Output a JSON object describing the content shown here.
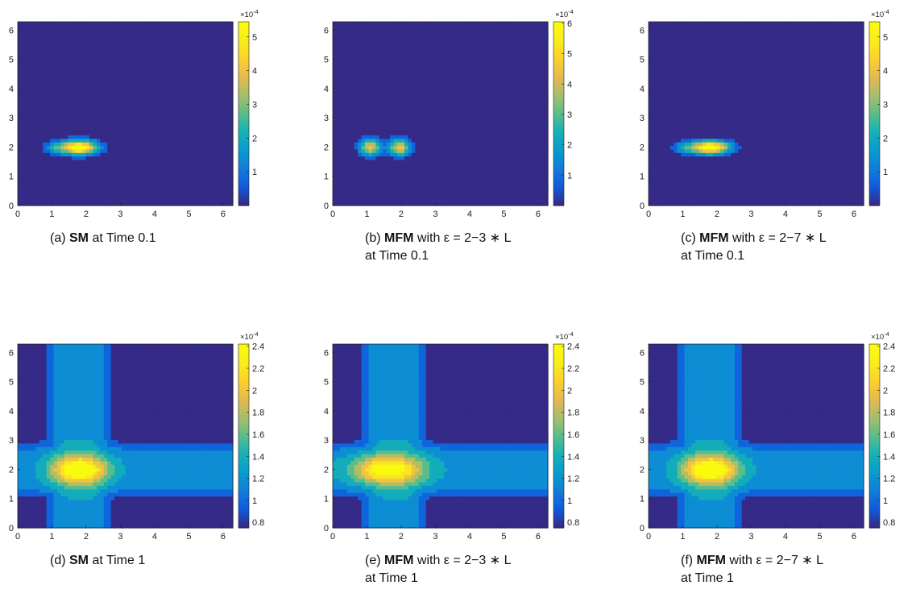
{
  "chart_data": [
    {
      "type": "heatmap",
      "panel": "a",
      "caption_label": "(a)",
      "caption_method": "SM",
      "caption_epsilon": "",
      "caption_time": "at Time 0.1",
      "x_ticks": [
        "0",
        "1",
        "2",
        "3",
        "4",
        "5",
        "6"
      ],
      "y_ticks": [
        "0",
        "1",
        "2",
        "3",
        "4",
        "5",
        "6"
      ],
      "xlim": [
        0,
        6.283
      ],
      "ylim": [
        0,
        6.283
      ],
      "colorbar_ticks": [
        "1",
        "2",
        "3",
        "4",
        "5"
      ],
      "colorbar_range": [
        0.0,
        5.45
      ],
      "colorbar_exponent": "×10",
      "colorbar_exponent_power": "-4",
      "field": {
        "kind": "blobs",
        "background": 0.0,
        "blobs": [
          {
            "x": 1.8,
            "y": 2.0,
            "amp": 5.45,
            "sx": 0.55,
            "sy": 0.26
          },
          {
            "x": 1.05,
            "y": 2.0,
            "amp": 1.4,
            "sx": 0.35,
            "sy": 0.24
          }
        ]
      }
    },
    {
      "type": "heatmap",
      "panel": "b",
      "caption_label": "(b)",
      "caption_method": "MFM",
      "caption_epsilon": "with ε = 2−3 ∗ L",
      "caption_time": "at Time 0.1",
      "x_ticks": [
        "0",
        "1",
        "2",
        "3",
        "4",
        "5",
        "6"
      ],
      "y_ticks": [
        "0",
        "1",
        "2",
        "3",
        "4",
        "5",
        "6"
      ],
      "xlim": [
        0,
        6.283
      ],
      "ylim": [
        0,
        6.283
      ],
      "colorbar_ticks": [
        "1",
        "2",
        "3",
        "4",
        "5",
        "6"
      ],
      "colorbar_range": [
        0.0,
        6.05
      ],
      "colorbar_exponent": "×10",
      "colorbar_exponent_power": "-4",
      "field": {
        "kind": "blobs",
        "background": 0.0,
        "blobs": [
          {
            "x": 1.1,
            "y": 2.0,
            "amp": 4.4,
            "sx": 0.32,
            "sy": 0.3
          },
          {
            "x": 1.95,
            "y": 2.0,
            "amp": 4.4,
            "sx": 0.32,
            "sy": 0.3
          }
        ]
      }
    },
    {
      "type": "heatmap",
      "panel": "c",
      "caption_label": "(c)",
      "caption_method": "MFM",
      "caption_epsilon": "with ε = 2−7 ∗ L",
      "caption_time": "at Time 0.1",
      "x_ticks": [
        "0",
        "1",
        "2",
        "3",
        "4",
        "5",
        "6"
      ],
      "y_ticks": [
        "0",
        "1",
        "2",
        "3",
        "4",
        "5",
        "6"
      ],
      "xlim": [
        0,
        6.283
      ],
      "ylim": [
        0,
        6.283
      ],
      "colorbar_ticks": [
        "1",
        "2",
        "3",
        "4",
        "5"
      ],
      "colorbar_range": [
        0.0,
        5.45
      ],
      "colorbar_exponent": "×10",
      "colorbar_exponent_power": "-4",
      "field": {
        "kind": "blobs",
        "background": 0.0,
        "blobs": [
          {
            "x": 1.8,
            "y": 2.0,
            "amp": 5.45,
            "sx": 0.6,
            "sy": 0.24
          },
          {
            "x": 1.0,
            "y": 2.0,
            "amp": 1.3,
            "sx": 0.35,
            "sy": 0.22
          }
        ]
      }
    },
    {
      "type": "heatmap",
      "panel": "d",
      "caption_label": "(d)",
      "caption_method": "SM",
      "caption_epsilon": "",
      "caption_time": "at Time 1",
      "x_ticks": [
        "0",
        "1",
        "2",
        "3",
        "4",
        "5",
        "6"
      ],
      "y_ticks": [
        "0",
        "1",
        "2",
        "3",
        "4",
        "5",
        "6"
      ],
      "xlim": [
        0,
        6.283
      ],
      "ylim": [
        0,
        6.283
      ],
      "colorbar_ticks": [
        "0.8",
        "1",
        "1.2",
        "1.4",
        "1.6",
        "1.8",
        "2",
        "2.2",
        "2.4"
      ],
      "colorbar_range": [
        0.75,
        2.42
      ],
      "colorbar_exponent": "×10",
      "colorbar_exponent_power": "-4",
      "field": {
        "kind": "cross",
        "background": 0.75,
        "cx": 1.8,
        "cy": 2.0,
        "band": 0.5,
        "band_w": 0.95,
        "peak": 2.42,
        "px": 1.8,
        "py": 2.0,
        "psx": 0.75,
        "psy": 0.45,
        "pskew": 0.0
      }
    },
    {
      "type": "heatmap",
      "panel": "e",
      "caption_label": "(e)",
      "caption_method": "MFM",
      "caption_epsilon": "with ε = 2−3 ∗ L",
      "caption_time": "at Time 1",
      "x_ticks": [
        "0",
        "1",
        "2",
        "3",
        "4",
        "5",
        "6"
      ],
      "y_ticks": [
        "0",
        "1",
        "2",
        "3",
        "4",
        "5",
        "6"
      ],
      "xlim": [
        0,
        6.283
      ],
      "ylim": [
        0,
        6.283
      ],
      "colorbar_ticks": [
        "0.8",
        "1",
        "1.2",
        "1.4",
        "1.6",
        "1.8",
        "2",
        "2.2",
        "2.4"
      ],
      "colorbar_range": [
        0.75,
        2.42
      ],
      "colorbar_exponent": "×10",
      "colorbar_exponent_power": "-4",
      "field": {
        "kind": "cross",
        "background": 0.75,
        "cx": 1.8,
        "cy": 2.0,
        "band": 0.5,
        "band_w": 0.95,
        "peak": 2.3,
        "px": 1.6,
        "py": 2.0,
        "psx": 1.0,
        "psy": 0.45,
        "pskew": 0.0
      }
    },
    {
      "type": "heatmap",
      "panel": "f",
      "caption_label": "(f)",
      "caption_method": "MFM",
      "caption_epsilon": "with ε = 2−7 ∗ L",
      "caption_time": "at Time 1",
      "x_ticks": [
        "0",
        "1",
        "2",
        "3",
        "4",
        "5",
        "6"
      ],
      "y_ticks": [
        "0",
        "1",
        "2",
        "3",
        "4",
        "5",
        "6"
      ],
      "xlim": [
        0,
        6.283
      ],
      "ylim": [
        0,
        6.283
      ],
      "colorbar_ticks": [
        "0.8",
        "1",
        "1.2",
        "1.4",
        "1.6",
        "1.8",
        "2",
        "2.2",
        "2.4"
      ],
      "colorbar_range": [
        0.75,
        2.42
      ],
      "colorbar_exponent": "×10",
      "colorbar_exponent_power": "-4",
      "field": {
        "kind": "cross",
        "background": 0.75,
        "cx": 1.8,
        "cy": 2.0,
        "band": 0.5,
        "band_w": 0.95,
        "peak": 2.42,
        "px": 1.8,
        "py": 2.0,
        "psx": 0.75,
        "psy": 0.45,
        "pskew": 0.0
      }
    }
  ]
}
